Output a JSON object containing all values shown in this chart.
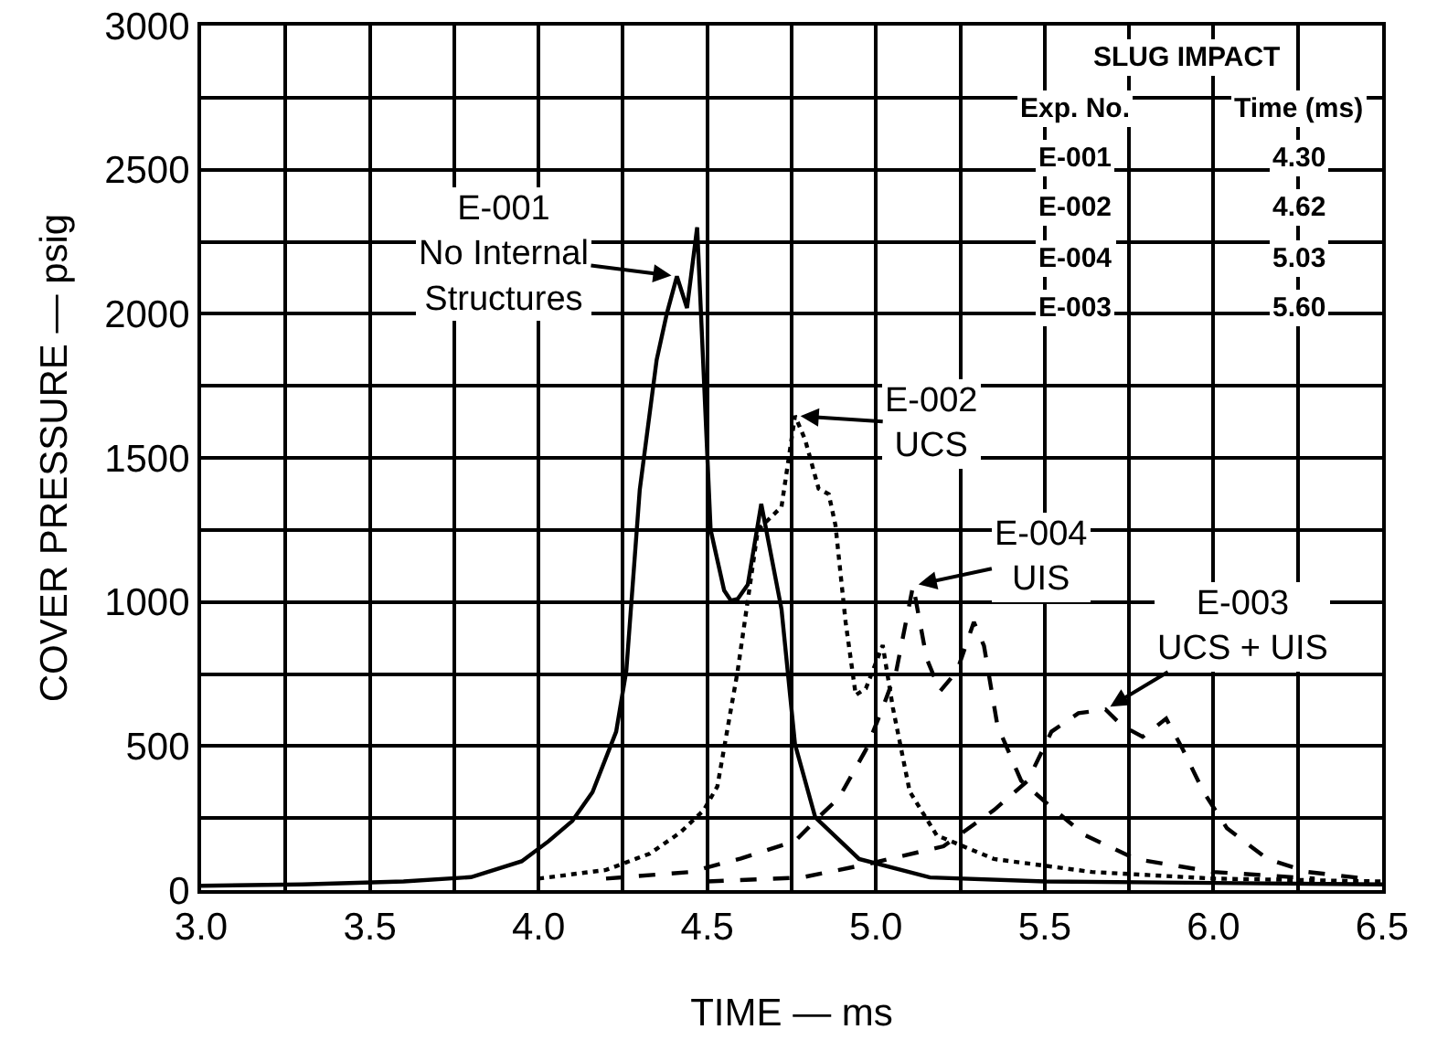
{
  "chart_data": {
    "type": "line",
    "xlabel": "TIME — ms",
    "ylabel": "COVER PRESSURE — psig",
    "xlim": [
      3.0,
      6.5
    ],
    "ylim": [
      0,
      3000
    ],
    "xticks": [
      {
        "value": 3.0,
        "label": "3.0"
      },
      {
        "value": 3.25,
        "label": null
      },
      {
        "value": 3.5,
        "label": "3.5"
      },
      {
        "value": 3.75,
        "label": null
      },
      {
        "value": 4.0,
        "label": "4.0"
      },
      {
        "value": 4.25,
        "label": null
      },
      {
        "value": 4.5,
        "label": "4.5"
      },
      {
        "value": 4.75,
        "label": null
      },
      {
        "value": 5.0,
        "label": "5.0"
      },
      {
        "value": 5.25,
        "label": null
      },
      {
        "value": 5.5,
        "label": "5.5"
      },
      {
        "value": 5.75,
        "label": null
      },
      {
        "value": 6.0,
        "label": "6.0"
      },
      {
        "value": 6.25,
        "label": null
      },
      {
        "value": 6.5,
        "label": "6.5"
      }
    ],
    "yticks": [
      0,
      {
        "value": 250,
        "label": null
      },
      500,
      {
        "value": 750,
        "label": null
      },
      1000,
      {
        "value": 1250,
        "label": null
      },
      1500,
      {
        "value": 1750,
        "label": null
      },
      2000,
      {
        "value": 2250,
        "label": null
      },
      2500,
      {
        "value": 2750,
        "label": null
      },
      3000
    ],
    "grid": true,
    "marker": "none",
    "series": [
      {
        "color": "#000000",
        "line_style": "solid",
        "x": [
          3.0,
          3.3,
          3.6,
          3.8,
          3.95,
          4.03,
          4.1,
          4.16,
          4.23,
          4.26,
          4.3,
          4.35,
          4.38,
          4.41,
          4.44,
          4.47,
          4.51,
          4.55,
          4.57,
          4.59,
          4.62,
          4.66,
          4.72,
          4.76,
          4.82,
          4.95,
          5.16,
          5.5,
          6.0,
          6.5
        ],
        "values": [
          15,
          20,
          30,
          45,
          100,
          170,
          240,
          340,
          550,
          760,
          1390,
          1840,
          2000,
          2130,
          2020,
          2300,
          1250,
          1040,
          1005,
          1010,
          1060,
          1340,
          975,
          506,
          253,
          108,
          44,
          30,
          25,
          20
        ]
      },
      {
        "color": "#000000",
        "line_style": "dotted",
        "x": [
          4.0,
          4.2,
          4.33,
          4.42,
          4.49,
          4.53,
          4.59,
          4.65,
          4.72,
          4.76,
          4.79,
          4.83,
          4.86,
          4.88,
          4.91,
          4.94,
          4.97,
          5.02,
          5.05,
          5.1,
          5.18,
          5.35,
          5.64,
          6.0,
          6.5
        ],
        "values": [
          40,
          70,
          127,
          200,
          278,
          360,
          760,
          1250,
          1330,
          1646,
          1563,
          1393,
          1374,
          1266,
          930,
          677,
          700,
          850,
          633,
          342,
          190,
          108,
          63,
          40,
          30
        ]
      },
      {
        "color": "#000000",
        "line_style": "dashed",
        "x": [
          4.2,
          4.45,
          4.6,
          4.76,
          4.83,
          4.89,
          4.97,
          5.02,
          5.06,
          5.11,
          5.15,
          5.19,
          5.24,
          5.29,
          5.32,
          5.36,
          5.43,
          5.51,
          5.62,
          5.77,
          6.0,
          6.3
        ],
        "values": [
          40,
          63,
          110,
          170,
          253,
          320,
          487,
          633,
          760,
          1057,
          804,
          690,
          760,
          930,
          848,
          570,
          380,
          297,
          190,
          108,
          63,
          40
        ]
      },
      {
        "color": "#000000",
        "line_style": "dashed",
        "x": [
          4.5,
          4.78,
          4.97,
          5.2,
          5.35,
          5.45,
          5.52,
          5.6,
          5.68,
          5.73,
          5.79,
          5.86,
          5.91,
          5.97,
          6.04,
          6.16,
          6.28,
          6.45
        ],
        "values": [
          30,
          44,
          89,
          152,
          278,
          380,
          550,
          614,
          627,
          570,
          532,
          595,
          487,
          342,
          215,
          108,
          63,
          40
        ]
      }
    ],
    "annotations": [
      {
        "text": "E-001\nNo Internal\nStructures",
        "x": 4.41,
        "y": 2130
      },
      {
        "text": "E-002\nUCS",
        "x": 4.76,
        "y": 1646
      },
      {
        "text": "E-004\nUIS",
        "x": 5.11,
        "y": 1057
      },
      {
        "text": "E-003\nUCS + UIS",
        "x": 5.68,
        "y": 627
      },
      "SLUG IMPACT",
      "Exp. No.",
      "Time (ms)",
      "E-001",
      "4.30",
      "E-002",
      "4.62",
      "E-004",
      "5.03",
      "E-003",
      "5.60"
    ]
  }
}
